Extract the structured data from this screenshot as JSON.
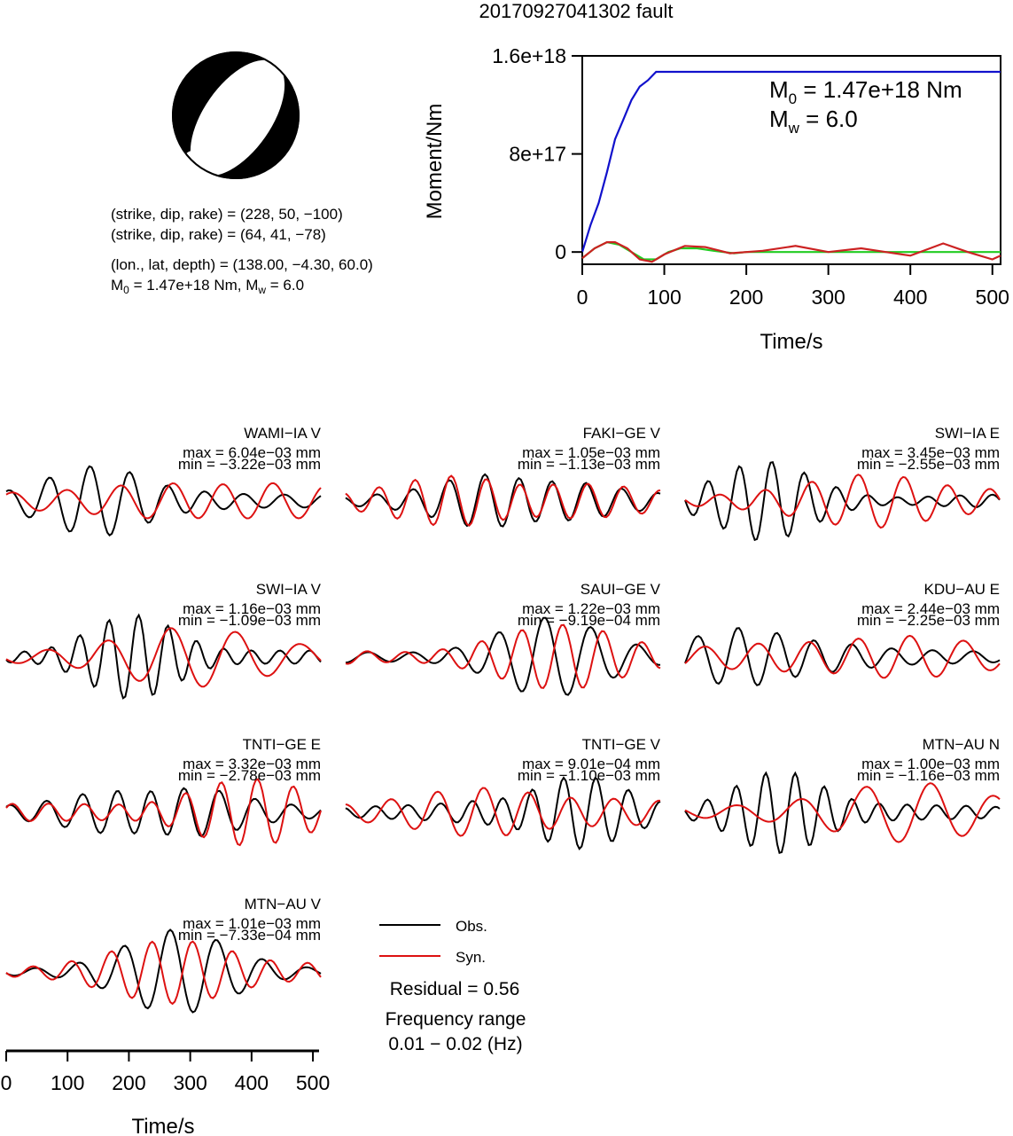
{
  "title": "20170927041302 fault",
  "mechanism": {
    "line1": "(strike, dip, rake) = (228, 50, −100)",
    "line2": "(strike, dip, rake) = (64, 41, −78)",
    "line3": "(lon., lat, depth) = (138.00, −4.30, 60.0)",
    "m0_prefix": "M",
    "m0_sub": "0",
    "m0_rest": " = 1.47e+18 Nm, M",
    "mw_sub": "w",
    "mw_rest": " = 6.0"
  },
  "moment_plot": {
    "ylabel": "Moment/Nm",
    "xlabel": "Time/s",
    "yticks": [
      "0",
      "8e+17",
      "1.6e+18"
    ],
    "xticks": [
      "0",
      "100",
      "200",
      "300",
      "400",
      "500"
    ],
    "m0_label_main": "M",
    "m0_label_sub": "0",
    "m0_label_rest": " = 1.47e+18 Nm",
    "mw_label_main": "M",
    "mw_label_sub": "w",
    "mw_label_rest": " = 6.0"
  },
  "waveform_axis": {
    "xlabel": "Time/s",
    "xticks": [
      "0",
      "100",
      "200",
      "300",
      "400",
      "500"
    ]
  },
  "legend": {
    "obs": "Obs.",
    "syn": "Syn.",
    "residual": "Residual = 0.56",
    "freq_title": "Frequency range",
    "freq_range": "0.01 − 0.02 (Hz)"
  },
  "colors": {
    "observed": "#000000",
    "synthetic": "#dd1111",
    "moment_cumulative": "#1111cc",
    "moment_rate_green": "#22cc22",
    "moment_rate_red": "#cc2222"
  },
  "stations": [
    {
      "name": "WAMI−IA V",
      "max": "max = 6.04e−03 mm",
      "min": "min = −3.22e−03 mm"
    },
    {
      "name": "FAKI−GE V",
      "max": "max = 1.05e−03 mm",
      "min": "min = −1.13e−03 mm"
    },
    {
      "name": "SWI−IA E",
      "max": "max = 3.45e−03 mm",
      "min": "min = −2.55e−03 mm"
    },
    {
      "name": "SWI−IA V",
      "max": "max = 1.16e−03 mm",
      "min": "min = −1.09e−03 mm"
    },
    {
      "name": "SAUI−GE V",
      "max": "max = 1.22e−03 mm",
      "min": "min = −9.19e−04 mm"
    },
    {
      "name": "KDU−AU E",
      "max": "max = 2.44e−03 mm",
      "min": "min = −2.25e−03 mm"
    },
    {
      "name": "TNTI−GE E",
      "max": "max = 3.32e−03 mm",
      "min": "min = −2.78e−03 mm"
    },
    {
      "name": "TNTI−GE V",
      "max": "max = 9.01e−04 mm",
      "min": "min = −1.10e−03 mm"
    },
    {
      "name": "MTN−AU N",
      "max": "max = 1.00e−03 mm",
      "min": "min = −1.16e−03 mm"
    },
    {
      "name": "MTN−AU V",
      "max": "max = 1.01e−03 mm",
      "min": "min = −7.33e−04 mm"
    }
  ],
  "chart_data": [
    {
      "type": "line",
      "xlabel": "Time/s",
      "ylabel": "Moment/Nm",
      "xlim": [
        0,
        510
      ],
      "ylim": [
        -1e+17,
        1.6e+18
      ],
      "series": [
        {
          "color": "blue",
          "x": [
            0,
            10,
            20,
            30,
            40,
            50,
            60,
            70,
            80,
            90,
            100,
            200,
            300,
            400,
            510
          ],
          "y": [
            0,
            2.2e+17,
            4e+17,
            6.5e+17,
            9.2e+17,
            1.08e+18,
            1.24e+18,
            1.35e+18,
            1.4e+18,
            1.47e+18,
            1.47e+18,
            1.47e+18,
            1.47e+18,
            1.47e+18,
            1.47e+18
          ]
        },
        {
          "color": "green",
          "x": [
            0,
            15,
            30,
            45,
            60,
            75,
            90,
            105,
            120,
            140,
            160,
            185,
            200,
            300,
            400,
            510
          ],
          "y": [
            -5e+16,
            3e+16,
            8e+16,
            6e+16,
            0,
            -6e+16,
            -6e+16,
            0,
            3e+16,
            3e+16,
            1e+16,
            -1e+16,
            0,
            0,
            0,
            0
          ]
        },
        {
          "color": "red",
          "x": [
            0,
            15,
            30,
            40,
            55,
            70,
            85,
            100,
            125,
            150,
            180,
            220,
            260,
            300,
            340,
            370,
            400,
            440,
            470,
            500,
            510
          ],
          "y": [
            -5e+16,
            3e+16,
            8e+16,
            8e+16,
            3e+16,
            -6e+16,
            -8e+16,
            -2e+16,
            5e+16,
            4e+16,
            -1e+16,
            1e+16,
            5e+16,
            0,
            3e+16,
            0,
            -3e+16,
            7e+16,
            0,
            -6e+16,
            -3e+16
          ]
        }
      ]
    }
  ]
}
